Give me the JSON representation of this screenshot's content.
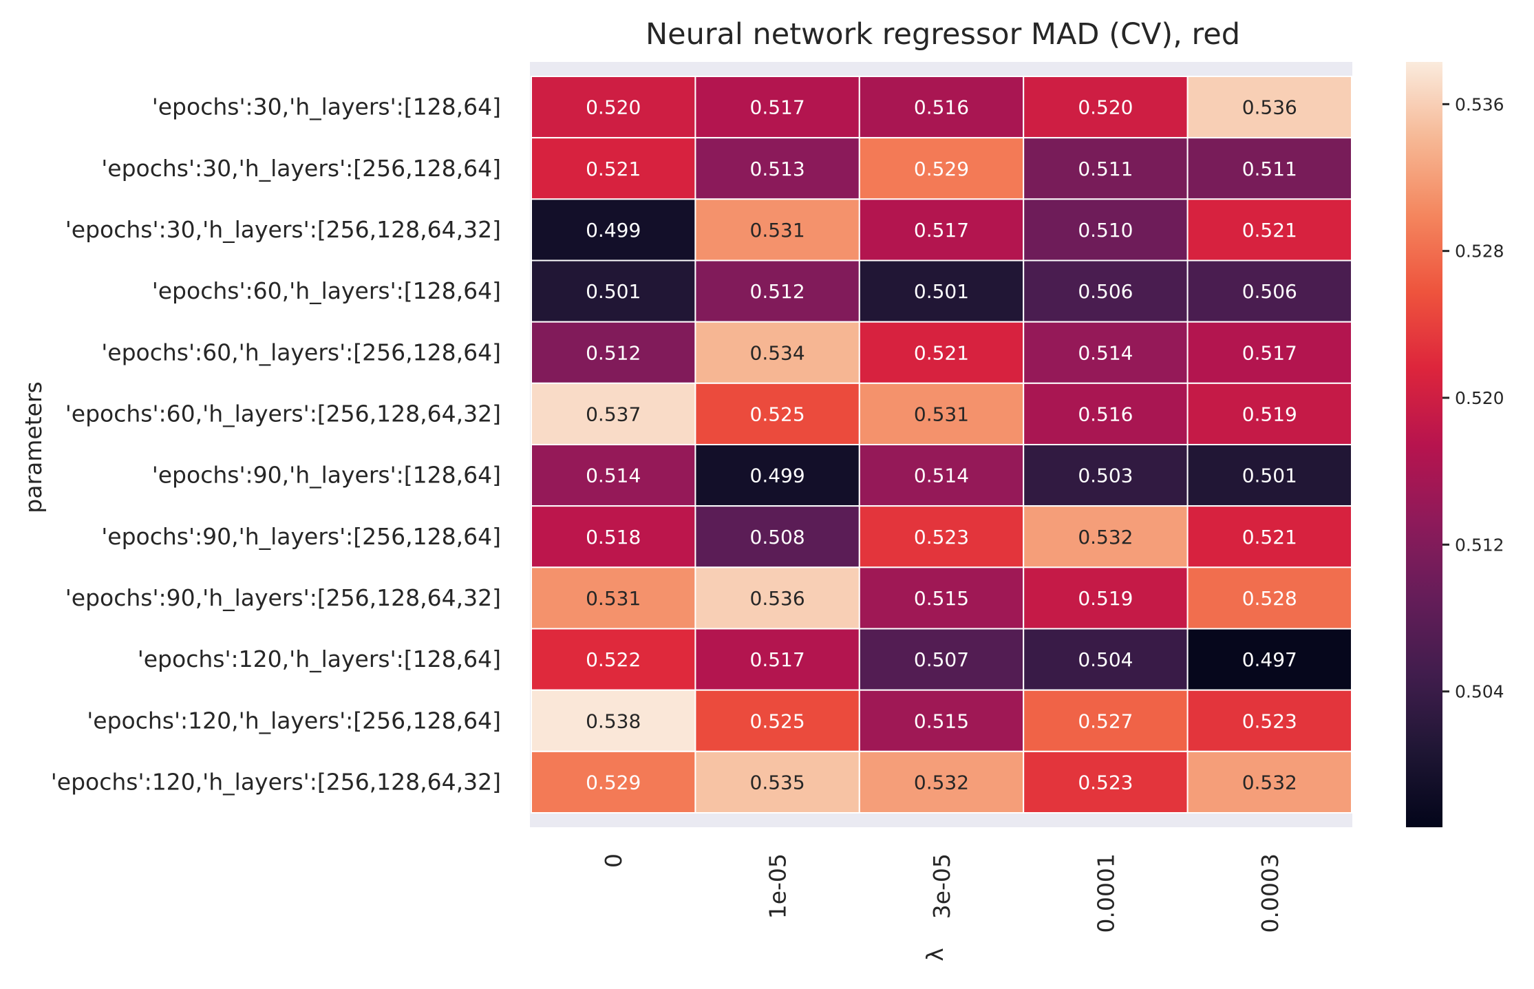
{
  "chart_data": {
    "type": "heatmap",
    "title": "Neural network regressor MAD (CV), red",
    "xlabel": "λ",
    "ylabel": "parameters",
    "x_categories": [
      "0",
      "1e-05",
      "3e-05",
      "0.0001",
      "0.0003"
    ],
    "y_categories": [
      "'epochs':30,'h_layers':[128,64]",
      "'epochs':30,'h_layers':[256,128,64]",
      "'epochs':30,'h_layers':[256,128,64,32]",
      "'epochs':60,'h_layers':[128,64]",
      "'epochs':60,'h_layers':[256,128,64]",
      "'epochs':60,'h_layers':[256,128,64,32]",
      "'epochs':90,'h_layers':[128,64]",
      "'epochs':90,'h_layers':[256,128,64]",
      "'epochs':90,'h_layers':[256,128,64,32]",
      "'epochs':120,'h_layers':[128,64]",
      "'epochs':120,'h_layers':[256,128,64]",
      "'epochs':120,'h_layers':[256,128,64,32]"
    ],
    "values": [
      [
        0.52,
        0.517,
        0.516,
        0.52,
        0.536
      ],
      [
        0.521,
        0.513,
        0.529,
        0.511,
        0.511
      ],
      [
        0.499,
        0.531,
        0.517,
        0.51,
        0.521
      ],
      [
        0.501,
        0.512,
        0.501,
        0.506,
        0.506
      ],
      [
        0.512,
        0.534,
        0.521,
        0.514,
        0.517
      ],
      [
        0.537,
        0.525,
        0.531,
        0.516,
        0.519
      ],
      [
        0.514,
        0.499,
        0.514,
        0.503,
        0.501
      ],
      [
        0.518,
        0.508,
        0.523,
        0.532,
        0.521
      ],
      [
        0.531,
        0.536,
        0.515,
        0.519,
        0.528
      ],
      [
        0.522,
        0.517,
        0.507,
        0.504,
        0.497
      ],
      [
        0.538,
        0.525,
        0.515,
        0.527,
        0.523
      ],
      [
        0.529,
        0.535,
        0.532,
        0.523,
        0.532
      ]
    ],
    "value_format_decimals": 3,
    "colormap": "rocket",
    "colorbar": {
      "vmin": 0.4966,
      "vmax": 0.5383,
      "ticks": [
        0.504,
        0.512,
        0.52,
        0.528,
        0.536
      ],
      "tick_labels": [
        "0.504",
        "0.512",
        "0.520",
        "0.528",
        "0.536"
      ]
    },
    "cell_border_color": "#ffffff",
    "background_color": "#eaeaf2"
  }
}
